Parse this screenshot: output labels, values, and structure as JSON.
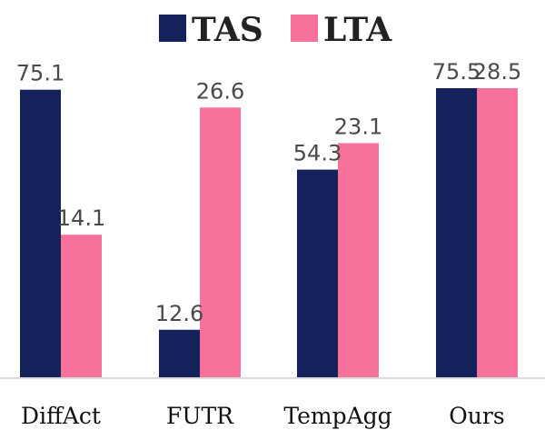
{
  "chart_data": {
    "type": "bar",
    "categories": [
      "DiffAct",
      "FUTR",
      "TempAgg",
      "Ours"
    ],
    "series": [
      {
        "name": "TAS",
        "values": [
          75.1,
          12.6,
          54.3,
          75.5
        ]
      },
      {
        "name": "LTA",
        "values": [
          14.1,
          26.6,
          23.1,
          28.5
        ]
      }
    ],
    "title": "",
    "xlabel": "",
    "ylabel": "",
    "grid": false,
    "legend_position": "top-center",
    "colors": {
      "TAS": "#14215a",
      "LTA": "#f7729a"
    },
    "series_scales": {
      "TAS": [
        0,
        80
      ],
      "LTA": [
        0,
        30
      ]
    },
    "value_labels": [
      [
        "75.1",
        "14.1"
      ],
      [
        "12.6",
        "26.6"
      ],
      [
        "54.3",
        "23.1"
      ],
      [
        "75.5",
        "28.5"
      ]
    ]
  }
}
